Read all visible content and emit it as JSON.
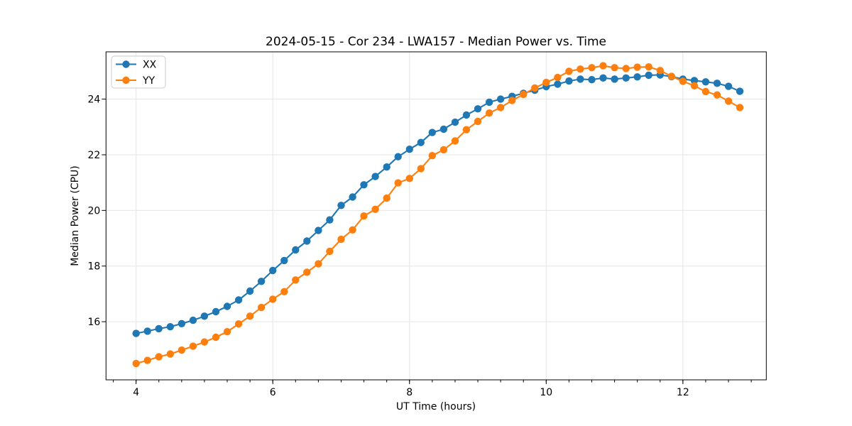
{
  "chart_data": {
    "type": "line",
    "title": "2024-05-15 - Cor 234 - LWA157 - Median Power vs. Time",
    "xlabel": "UT Time (hours)",
    "ylabel": "Median Power (CPU)",
    "xlim": [
      3.56,
      13.22
    ],
    "ylim": [
      13.91,
      25.7
    ],
    "x_ticks": [
      4,
      6,
      8,
      10,
      12
    ],
    "y_ticks": [
      16,
      18,
      20,
      22,
      24
    ],
    "x_minor_step": 0.333333,
    "grid": true,
    "legend_position": "upper-left",
    "x": [
      4.0,
      4.167,
      4.333,
      4.5,
      4.667,
      4.833,
      5.0,
      5.167,
      5.333,
      5.5,
      5.667,
      5.833,
      6.0,
      6.167,
      6.333,
      6.5,
      6.667,
      6.833,
      7.0,
      7.167,
      7.333,
      7.5,
      7.667,
      7.833,
      8.0,
      8.167,
      8.333,
      8.5,
      8.667,
      8.833,
      9.0,
      9.167,
      9.333,
      9.5,
      9.667,
      9.833,
      10.0,
      10.167,
      10.333,
      10.5,
      10.667,
      10.833,
      11.0,
      11.167,
      11.333,
      11.5,
      11.667,
      11.833,
      12.0,
      12.167,
      12.333,
      12.5,
      12.667,
      12.833
    ],
    "series": [
      {
        "name": "XX",
        "color": "#1f77b4",
        "marker": "circle",
        "values": [
          15.58,
          15.66,
          15.75,
          15.82,
          15.93,
          16.05,
          16.2,
          16.36,
          16.55,
          16.78,
          17.1,
          17.45,
          17.84,
          18.2,
          18.58,
          18.9,
          19.28,
          19.66,
          20.18,
          20.48,
          20.92,
          21.22,
          21.56,
          21.93,
          22.2,
          22.44,
          22.8,
          22.92,
          23.17,
          23.43,
          23.65,
          23.89,
          24.0,
          24.1,
          24.21,
          24.32,
          24.45,
          24.54,
          24.65,
          24.72,
          24.7,
          24.76,
          24.72,
          24.76,
          24.8,
          24.86,
          24.87,
          24.81,
          24.72,
          24.67,
          24.62,
          24.57,
          24.46,
          24.28
        ]
      },
      {
        "name": "YY",
        "color": "#ff7f0e",
        "marker": "circle",
        "values": [
          14.5,
          14.61,
          14.74,
          14.84,
          14.98,
          15.12,
          15.27,
          15.44,
          15.64,
          15.92,
          16.2,
          16.51,
          16.81,
          17.08,
          17.5,
          17.78,
          18.08,
          18.53,
          18.96,
          19.3,
          19.8,
          20.04,
          20.44,
          20.99,
          21.15,
          21.5,
          21.97,
          22.18,
          22.5,
          22.9,
          23.2,
          23.5,
          23.7,
          23.95,
          24.17,
          24.4,
          24.6,
          24.78,
          25.0,
          25.08,
          25.13,
          25.2,
          25.13,
          25.1,
          25.15,
          25.16,
          25.03,
          24.82,
          24.64,
          24.48,
          24.27,
          24.15,
          23.93,
          23.7
        ]
      }
    ]
  },
  "colors": {
    "background": "#ffffff",
    "grid": "#e5e5e5",
    "spine": "#000000",
    "tick": "#000000",
    "text": "#000000",
    "legend_border": "#cccccc",
    "legend_bg": "#ffffff"
  }
}
